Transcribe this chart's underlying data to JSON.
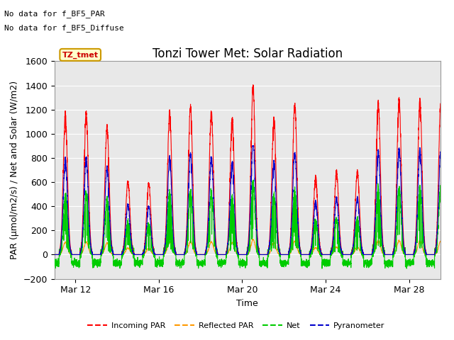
{
  "title": "Tonzi Tower Met: Solar Radiation",
  "xlabel": "Time",
  "ylabel": "PAR (μmol/m2/s) / Net and Solar (W/m2)",
  "no_data_labels": [
    "No data for f_BF5_PAR",
    "No data for f_BF5_Diffuse"
  ],
  "legend_label_box": "TZ_tmet",
  "legend_entries": [
    "Incoming PAR",
    "Reflected PAR",
    "Net",
    "Pyranometer"
  ],
  "legend_colors": [
    "#ff0000",
    "#ff9900",
    "#00cc00",
    "#0000cc"
  ],
  "ylim": [
    -200,
    1600
  ],
  "yticks": [
    -200,
    0,
    200,
    400,
    600,
    800,
    1000,
    1200,
    1400,
    1600
  ],
  "xtick_positions": [
    12,
    16,
    20,
    24,
    28
  ],
  "xtick_labels": [
    "Mar 12",
    "Mar 16",
    "Mar 20",
    "Mar 24",
    "Mar 28"
  ],
  "xlim": [
    11.0,
    29.5
  ],
  "background_color": "#ffffff",
  "plot_bg_color": "#e8e8e8",
  "grid_color": "#ffffff",
  "title_fontsize": 12,
  "axis_fontsize": 9,
  "tick_fontsize": 9,
  "day_peaks_par": [
    1180,
    1200,
    1080,
    620,
    600,
    1200,
    1250,
    1200,
    1150,
    1420,
    1150,
    1270,
    660,
    700,
    700,
    1280,
    1320,
    1300,
    1300
  ],
  "night_net": -70
}
